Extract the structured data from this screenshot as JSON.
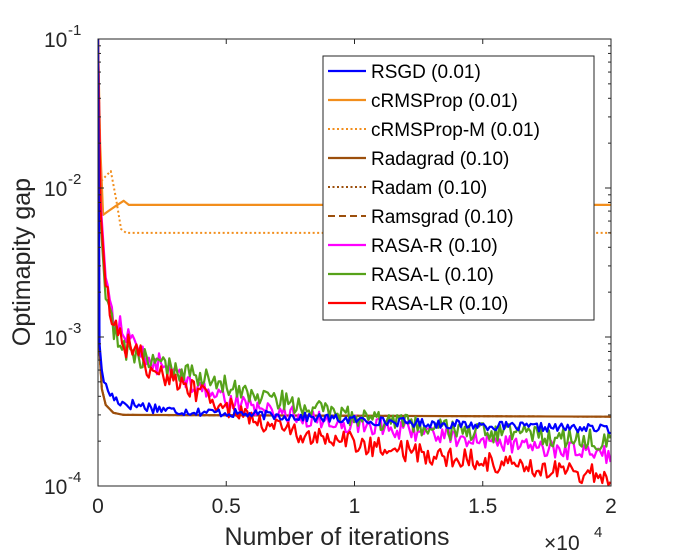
{
  "chart_data": {
    "type": "line",
    "title": "",
    "xlabel": "Number of iterations",
    "ylabel": "Optimapity gap",
    "x_multiplier_label": "×10",
    "x_multiplier_exp": "4",
    "xlim": [
      0,
      20000
    ],
    "ylim": [
      0.0001,
      0.1
    ],
    "yscale": "log",
    "x_ticks": [
      0,
      5000,
      10000,
      15000,
      20000
    ],
    "x_tick_labels": [
      "0",
      "0.5",
      "1",
      "1.5",
      "2"
    ],
    "y_ticks": [
      0.0001,
      0.001,
      0.01,
      0.1
    ],
    "y_tick_base": "10",
    "y_tick_exponents": [
      "-4",
      "-3",
      "-2",
      "-1"
    ],
    "grid": false,
    "legend_position": "top-right",
    "series": [
      {
        "name": "RSGD (0.01)",
        "color": "#0000ff",
        "dash": "solid",
        "points": [
          [
            0,
            0.1
          ],
          [
            60,
            0.0009
          ],
          [
            150,
            0.0006
          ],
          [
            300,
            0.00046
          ],
          [
            600,
            0.00039
          ],
          [
            1000,
            0.00036
          ],
          [
            2000,
            0.00034
          ],
          [
            3000,
            0.00032
          ],
          [
            4000,
            0.000315
          ],
          [
            5000,
            0.00031
          ],
          [
            6000,
            0.000302
          ],
          [
            7000,
            0.000296
          ],
          [
            8000,
            0.00029
          ],
          [
            9000,
            0.000284
          ],
          [
            10000,
            0.000278
          ],
          [
            11000,
            0.000272
          ],
          [
            12000,
            0.000268
          ],
          [
            13000,
            0.000263
          ],
          [
            14000,
            0.000259
          ],
          [
            15000,
            0.000255
          ],
          [
            16000,
            0.000251
          ],
          [
            17000,
            0.000248
          ],
          [
            18000,
            0.000246
          ],
          [
            19000,
            0.000244
          ],
          [
            20000,
            0.000242
          ]
        ],
        "noise": 0.03
      },
      {
        "name": "cRMSProp (0.01)",
        "color": "#f28e1c",
        "dash": "solid",
        "points": [
          [
            0,
            0.1
          ],
          [
            80,
            0.02
          ],
          [
            200,
            0.0066
          ],
          [
            400,
            0.007
          ],
          [
            700,
            0.0076
          ],
          [
            1000,
            0.0082
          ],
          [
            1200,
            0.0077
          ],
          [
            20000,
            0.0077
          ]
        ],
        "noise": 0
      },
      {
        "name": "cRMSProp-M (0.01)",
        "color": "#f28e1c",
        "dash": "dotted",
        "points": [
          [
            0,
            0.1
          ],
          [
            100,
            0.011
          ],
          [
            300,
            0.012
          ],
          [
            500,
            0.013
          ],
          [
            700,
            0.0085
          ],
          [
            900,
            0.0053
          ],
          [
            1100,
            0.005
          ],
          [
            20000,
            0.005
          ]
        ],
        "noise": 0
      },
      {
        "name": "Radagrad (0.10)",
        "color": "#9c4f0c",
        "dash": "solid",
        "points": [
          [
            0,
            0.1
          ],
          [
            60,
            0.0008
          ],
          [
            150,
            0.00045
          ],
          [
            300,
            0.00035
          ],
          [
            600,
            0.00031
          ],
          [
            1000,
            0.0003
          ],
          [
            20000,
            0.000292
          ]
        ],
        "noise": 0
      },
      {
        "name": "Radam (0.10)",
        "color": "#9c4f0c",
        "dash": "dotted",
        "points": [
          [
            0,
            0.1
          ],
          [
            60,
            0.0008
          ],
          [
            150,
            0.00045
          ],
          [
            300,
            0.00035
          ],
          [
            600,
            0.00031
          ],
          [
            1000,
            0.0003
          ],
          [
            20000,
            0.000292
          ]
        ],
        "noise": 0
      },
      {
        "name": "Ramsgrad (0.10)",
        "color": "#9c4f0c",
        "dash": "dashed",
        "points": [
          [
            0,
            0.1
          ],
          [
            60,
            0.0008
          ],
          [
            150,
            0.00045
          ],
          [
            300,
            0.00035
          ],
          [
            600,
            0.00031
          ],
          [
            1000,
            0.0003
          ],
          [
            20000,
            0.000292
          ]
        ],
        "noise": 0
      },
      {
        "name": "RASA-R (0.10)",
        "color": "#ff00ff",
        "dash": "solid",
        "points": [
          [
            0,
            0.1
          ],
          [
            100,
            0.008
          ],
          [
            300,
            0.0025
          ],
          [
            600,
            0.0013
          ],
          [
            1000,
            0.0011
          ],
          [
            1500,
            0.00085
          ],
          [
            2000,
            0.0007
          ],
          [
            3000,
            0.00058
          ],
          [
            4000,
            0.00045
          ],
          [
            5000,
            0.00038
          ],
          [
            6000,
            0.00034
          ],
          [
            7000,
            0.00031
          ],
          [
            8000,
            0.00029
          ],
          [
            9000,
            0.00027
          ],
          [
            10000,
            0.00026
          ],
          [
            11000,
            0.000248
          ],
          [
            12000,
            0.000235
          ],
          [
            13000,
            0.000222
          ],
          [
            14000,
            0.000212
          ],
          [
            15000,
            0.000202
          ],
          [
            16000,
            0.000194
          ],
          [
            17000,
            0.000184
          ],
          [
            18000,
            0.000175
          ],
          [
            19000,
            0.000166
          ],
          [
            20000,
            0.000162
          ]
        ],
        "noise": 0.06
      },
      {
        "name": "RASA-L (0.10)",
        "color": "#56a21a",
        "dash": "solid",
        "points": [
          [
            0,
            0.1
          ],
          [
            100,
            0.006
          ],
          [
            300,
            0.0018
          ],
          [
            600,
            0.0011
          ],
          [
            1000,
            0.00085
          ],
          [
            2000,
            0.00068
          ],
          [
            3000,
            0.0006
          ],
          [
            4000,
            0.00053
          ],
          [
            5000,
            0.00047
          ],
          [
            6000,
            0.00042
          ],
          [
            7000,
            0.00038
          ],
          [
            8000,
            0.00034
          ],
          [
            9000,
            0.00031
          ],
          [
            10000,
            0.00029
          ],
          [
            11000,
            0.00027
          ],
          [
            12000,
            0.000256
          ],
          [
            13000,
            0.000244
          ],
          [
            14000,
            0.000234
          ],
          [
            15000,
            0.000228
          ],
          [
            16000,
            0.000223
          ],
          [
            17000,
            0.000218
          ],
          [
            18000,
            0.000212
          ],
          [
            19000,
            0.000206
          ],
          [
            20000,
            0.0002
          ]
        ],
        "noise": 0.07
      },
      {
        "name": "RASA-LR (0.10)",
        "color": "#ff0000",
        "dash": "solid",
        "points": [
          [
            0,
            0.1
          ],
          [
            100,
            0.007
          ],
          [
            300,
            0.0022
          ],
          [
            600,
            0.0013
          ],
          [
            1000,
            0.00092
          ],
          [
            2000,
            0.00065
          ],
          [
            3000,
            0.0005
          ],
          [
            4000,
            0.00042
          ],
          [
            5000,
            0.00034
          ],
          [
            6000,
            0.00029
          ],
          [
            7000,
            0.00025
          ],
          [
            8000,
            0.00022
          ],
          [
            9000,
            0.000205
          ],
          [
            10000,
            0.000195
          ],
          [
            11000,
            0.000182
          ],
          [
            12000,
            0.000172
          ],
          [
            13000,
            0.000163
          ],
          [
            14000,
            0.000155
          ],
          [
            15000,
            0.000148
          ],
          [
            16000,
            0.000141
          ],
          [
            17000,
            0.000134
          ],
          [
            18000,
            0.000128
          ],
          [
            19000,
            0.000122
          ],
          [
            20000,
            0.000118
          ]
        ],
        "noise": 0.07
      }
    ]
  }
}
